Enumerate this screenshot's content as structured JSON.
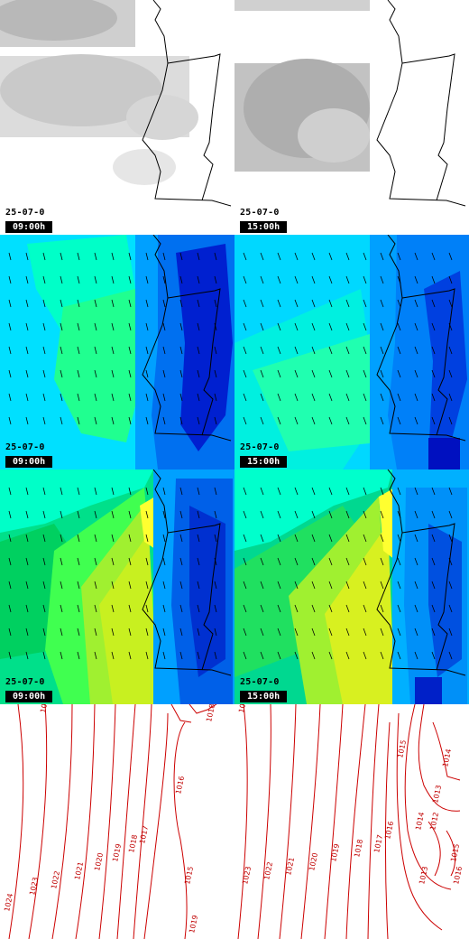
{
  "rows": [
    {
      "type": "cloud",
      "panels": [
        {
          "date": "25-07-0",
          "time": "09:00h"
        },
        {
          "date": "25-07-0",
          "time": "15:00h"
        }
      ]
    },
    {
      "type": "wind",
      "panels": [
        {
          "date": "25-07-0",
          "time": "09:00h"
        },
        {
          "date": "25-07-0",
          "time": "15:00h"
        }
      ]
    },
    {
      "type": "temperature",
      "panels": [
        {
          "date": "25-07-0",
          "time": "09:00h"
        },
        {
          "date": "25-07-0",
          "time": "15:00h"
        }
      ]
    },
    {
      "type": "pressure",
      "panels": [
        {
          "isobars": [
            "1024",
            "1023",
            "1022",
            "1021",
            "1020",
            "1019",
            "1018",
            "1017",
            "1016",
            "1015",
            "1019",
            "1018",
            "1023",
            "1022"
          ]
        },
        {
          "isobars": [
            "1023",
            "1022",
            "1021",
            "1020",
            "1019",
            "1018",
            "1017",
            "1016",
            "1015",
            "1014",
            "1013",
            "1012",
            "1013",
            "1014",
            "1015",
            "1016",
            "1023"
          ]
        }
      ]
    }
  ],
  "colors": {
    "coast": "#000000",
    "isobar": "#cc0000",
    "wind_scale": [
      "#00e0ff",
      "#00ffc8",
      "#00ff80",
      "#20e060",
      "#a0ff40",
      "#e0ff00",
      "#0080ff",
      "#0040e0",
      "#0010c0"
    ],
    "cloud": "#9a9a9a"
  }
}
